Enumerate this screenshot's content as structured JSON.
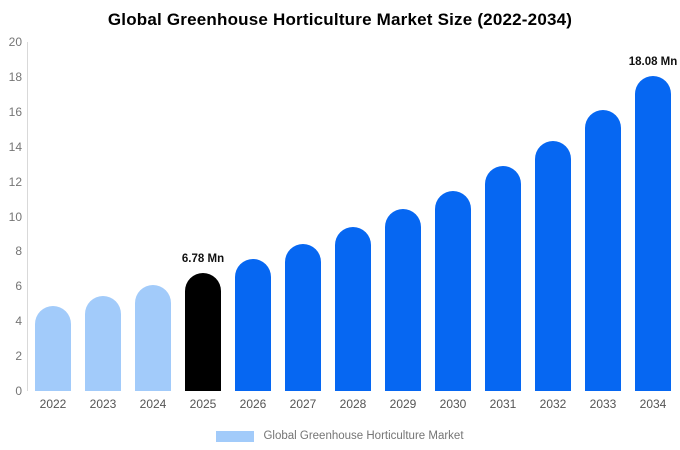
{
  "chart_data": {
    "type": "bar",
    "title": "Global Greenhouse Horticulture Market Size (2022-2034)",
    "categories": [
      "2022",
      "2023",
      "2024",
      "2025",
      "2026",
      "2027",
      "2028",
      "2029",
      "2030",
      "2031",
      "2032",
      "2033",
      "2034"
    ],
    "values": [
      4.85,
      5.45,
      6.05,
      6.78,
      7.55,
      8.45,
      9.4,
      10.45,
      11.45,
      12.9,
      14.35,
      16.1,
      18.08
    ],
    "point_labels": [
      "",
      "",
      "",
      "6.78 Mn",
      "",
      "",
      "",
      "",
      "",
      "",
      "",
      "",
      "18.08 Mn"
    ],
    "bar_color_roles": [
      "light",
      "light",
      "light",
      "highlight",
      "primary",
      "primary",
      "primary",
      "primary",
      "primary",
      "primary",
      "primary",
      "primary",
      "primary"
    ],
    "unit": "Mn",
    "ylim": [
      0,
      20
    ],
    "yticks": [
      0,
      2,
      4,
      6,
      8,
      10,
      12,
      14,
      16,
      18,
      20
    ],
    "xlabel": "",
    "ylabel": "",
    "grid": false,
    "legend_position": "bottom",
    "series_name": "Global Greenhouse Horticulture Market"
  },
  "palette": {
    "light": "#A2CBFA",
    "primary": "#0667F2",
    "highlight": "#000000"
  },
  "legend": {
    "label": "Global Greenhouse Horticulture Market",
    "swatch_color": "#A2CBFA"
  },
  "axis": {
    "y_tick_color": "#757575",
    "x_tick_color": "#555555",
    "line_color": "#D9D9D9"
  }
}
